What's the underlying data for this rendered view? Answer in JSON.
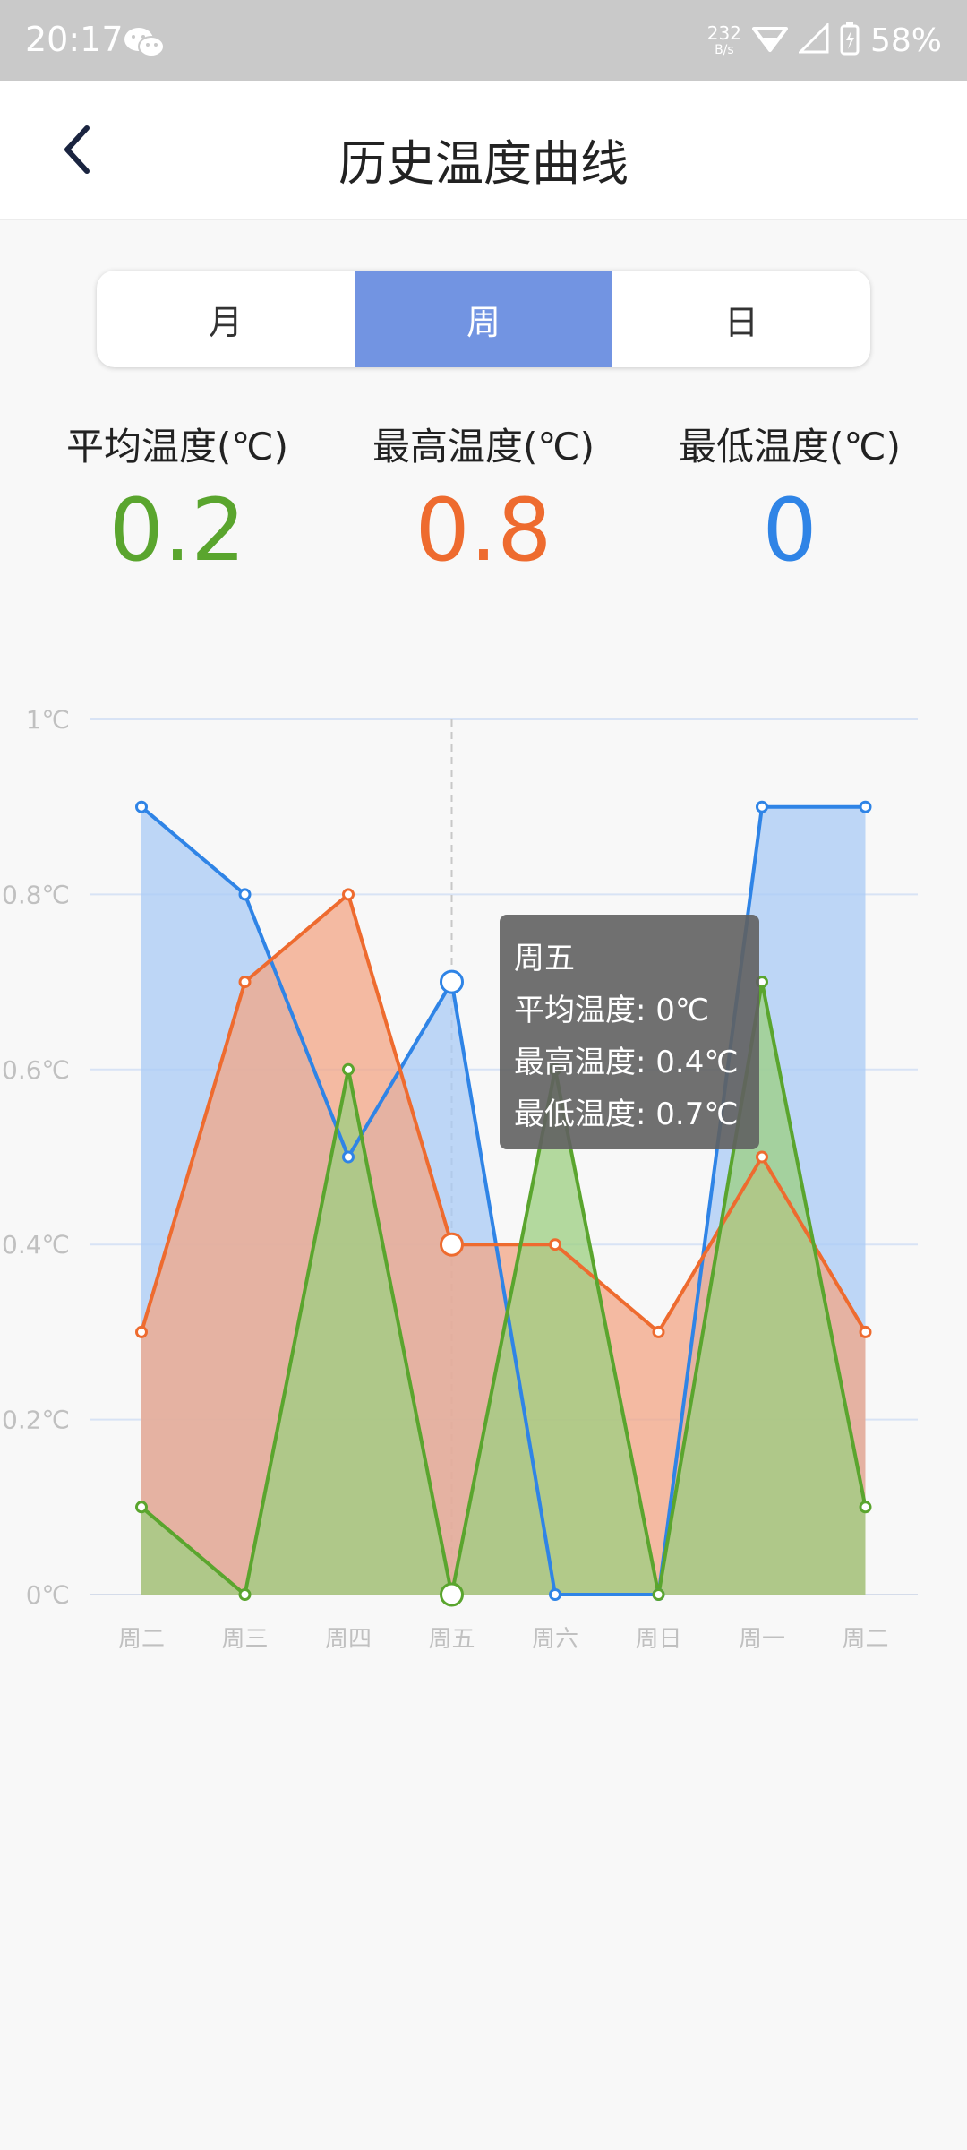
{
  "status_bar": {
    "time": "20:17",
    "net_speed": "232",
    "net_unit": "B/s",
    "battery": "58%"
  },
  "header": {
    "title": "历史温度曲线"
  },
  "tabs": [
    {
      "label": "月",
      "active": false
    },
    {
      "label": "周",
      "active": true
    },
    {
      "label": "日",
      "active": false
    }
  ],
  "stats": {
    "avg": {
      "label": "平均温度(℃)",
      "value": "0.2",
      "color": "#5aa52e"
    },
    "max": {
      "label": "最高温度(℃)",
      "value": "0.8",
      "color": "#ee6b2f"
    },
    "min": {
      "label": "最低温度(℃)",
      "value": "0",
      "color": "#2f84e6"
    }
  },
  "tooltip": {
    "title": "周五",
    "avg": "平均温度: 0℃",
    "max": "最高温度: 0.4℃",
    "min": "最低温度: 0.7℃"
  },
  "chart_data": {
    "type": "area",
    "categories": [
      "周二",
      "周三",
      "周四",
      "周五",
      "周六",
      "周日",
      "周一",
      "周二"
    ],
    "y_ticks": [
      "0℃",
      "0.2℃",
      "0.4℃",
      "0.6℃",
      "0.8℃",
      "1℃"
    ],
    "ylim": [
      0,
      1
    ],
    "grid": true,
    "highlight_index": 3,
    "series": [
      {
        "key": "min",
        "color": "#2f84e6",
        "fill": "#a9cbf5",
        "values": [
          0.9,
          0.8,
          0.5,
          0.7,
          0,
          0,
          0.9,
          0.9
        ]
      },
      {
        "key": "max",
        "color": "#ee6b2f",
        "fill": "#f3a585",
        "values": [
          0.3,
          0.7,
          0.8,
          0.4,
          0.4,
          0.3,
          0.5,
          0.3
        ]
      },
      {
        "key": "avg",
        "color": "#5aa52e",
        "fill": "#9ccf80",
        "values": [
          0.1,
          0,
          0.6,
          0,
          0.6,
          0,
          0.7,
          0.1
        ]
      }
    ]
  }
}
